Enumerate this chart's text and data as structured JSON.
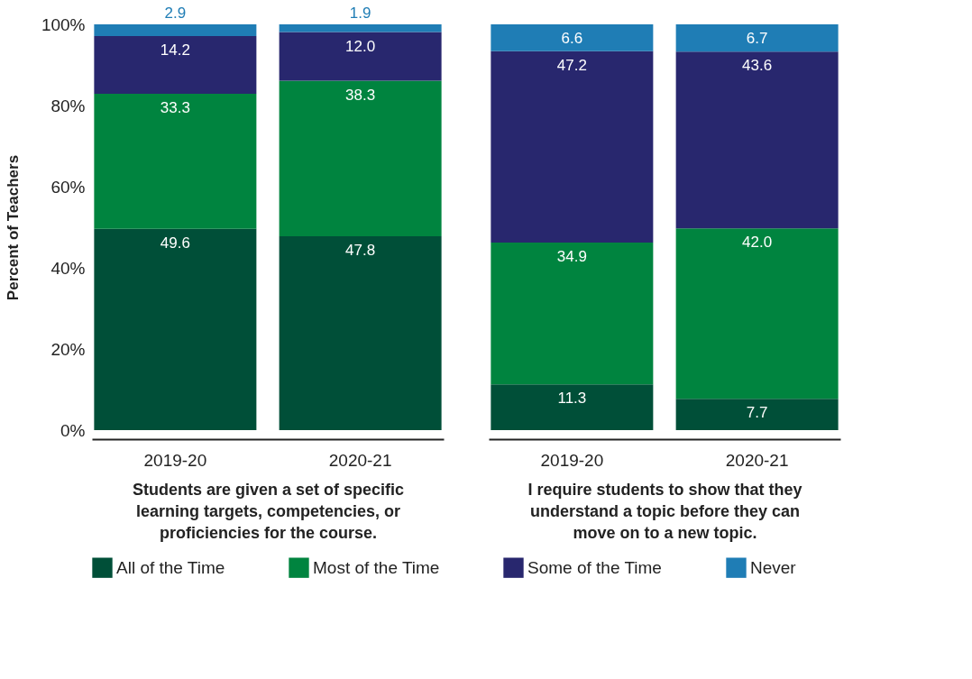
{
  "chart_data": [
    {
      "type": "bar",
      "stacked": true,
      "ylabel": "Percent of Teachers",
      "categories": [
        "2019-20",
        "2020-21"
      ],
      "series": [
        {
          "name": "All of the Time",
          "color": "#004f38",
          "values": [
            49.6,
            47.8
          ],
          "value_labels": [
            "49.6",
            "47.8"
          ]
        },
        {
          "name": "Most of the Time",
          "color": "#00843f",
          "values": [
            33.3,
            38.3
          ],
          "value_labels": [
            "33.3",
            "38.3"
          ]
        },
        {
          "name": "Some of the Time",
          "color": "#28276e",
          "values": [
            14.2,
            12.0
          ],
          "value_labels": [
            "14.2",
            "12.0"
          ]
        },
        {
          "name": "Never",
          "color": "#1f7db5",
          "values": [
            2.9,
            1.9
          ],
          "value_labels": [
            "2.9",
            "1.9"
          ]
        }
      ],
      "ylim": [
        0,
        100
      ],
      "yticks": [
        {
          "value": 0,
          "label": "0%"
        },
        {
          "value": 20,
          "label": "20%"
        },
        {
          "value": 40,
          "label": "40%"
        },
        {
          "value": 60,
          "label": "60%"
        },
        {
          "value": 80,
          "label": "80%"
        },
        {
          "value": 100,
          "label": "100%"
        }
      ],
      "annotations": [
        "Students are given a set of specific learning targets, competencies, or proficiencies for the course."
      ],
      "grid": false,
      "legend": "bottom"
    },
    {
      "type": "bar",
      "stacked": true,
      "categories": [
        "2019-20",
        "2020-21"
      ],
      "series": [
        {
          "name": "All of the Time",
          "color": "#004f38",
          "values": [
            11.3,
            7.7
          ],
          "value_labels": [
            "11.3",
            "7.7"
          ]
        },
        {
          "name": "Most of the Time",
          "color": "#00843f",
          "values": [
            34.9,
            42.0
          ],
          "value_labels": [
            "34.9",
            "42.0"
          ]
        },
        {
          "name": "Some of the Time",
          "color": "#28276e",
          "values": [
            47.2,
            43.6
          ],
          "value_labels": [
            "47.2",
            "43.6"
          ]
        },
        {
          "name": "Never",
          "color": "#1f7db5",
          "values": [
            6.6,
            6.7
          ],
          "value_labels": [
            "6.6",
            "6.7"
          ]
        }
      ],
      "ylim": [
        0,
        100
      ],
      "tick_labels": "x",
      "annotations": [
        "I require students to show that they understand a topic before they can move on to a new topic."
      ],
      "grid": false,
      "legend": "bottom"
    }
  ]
}
